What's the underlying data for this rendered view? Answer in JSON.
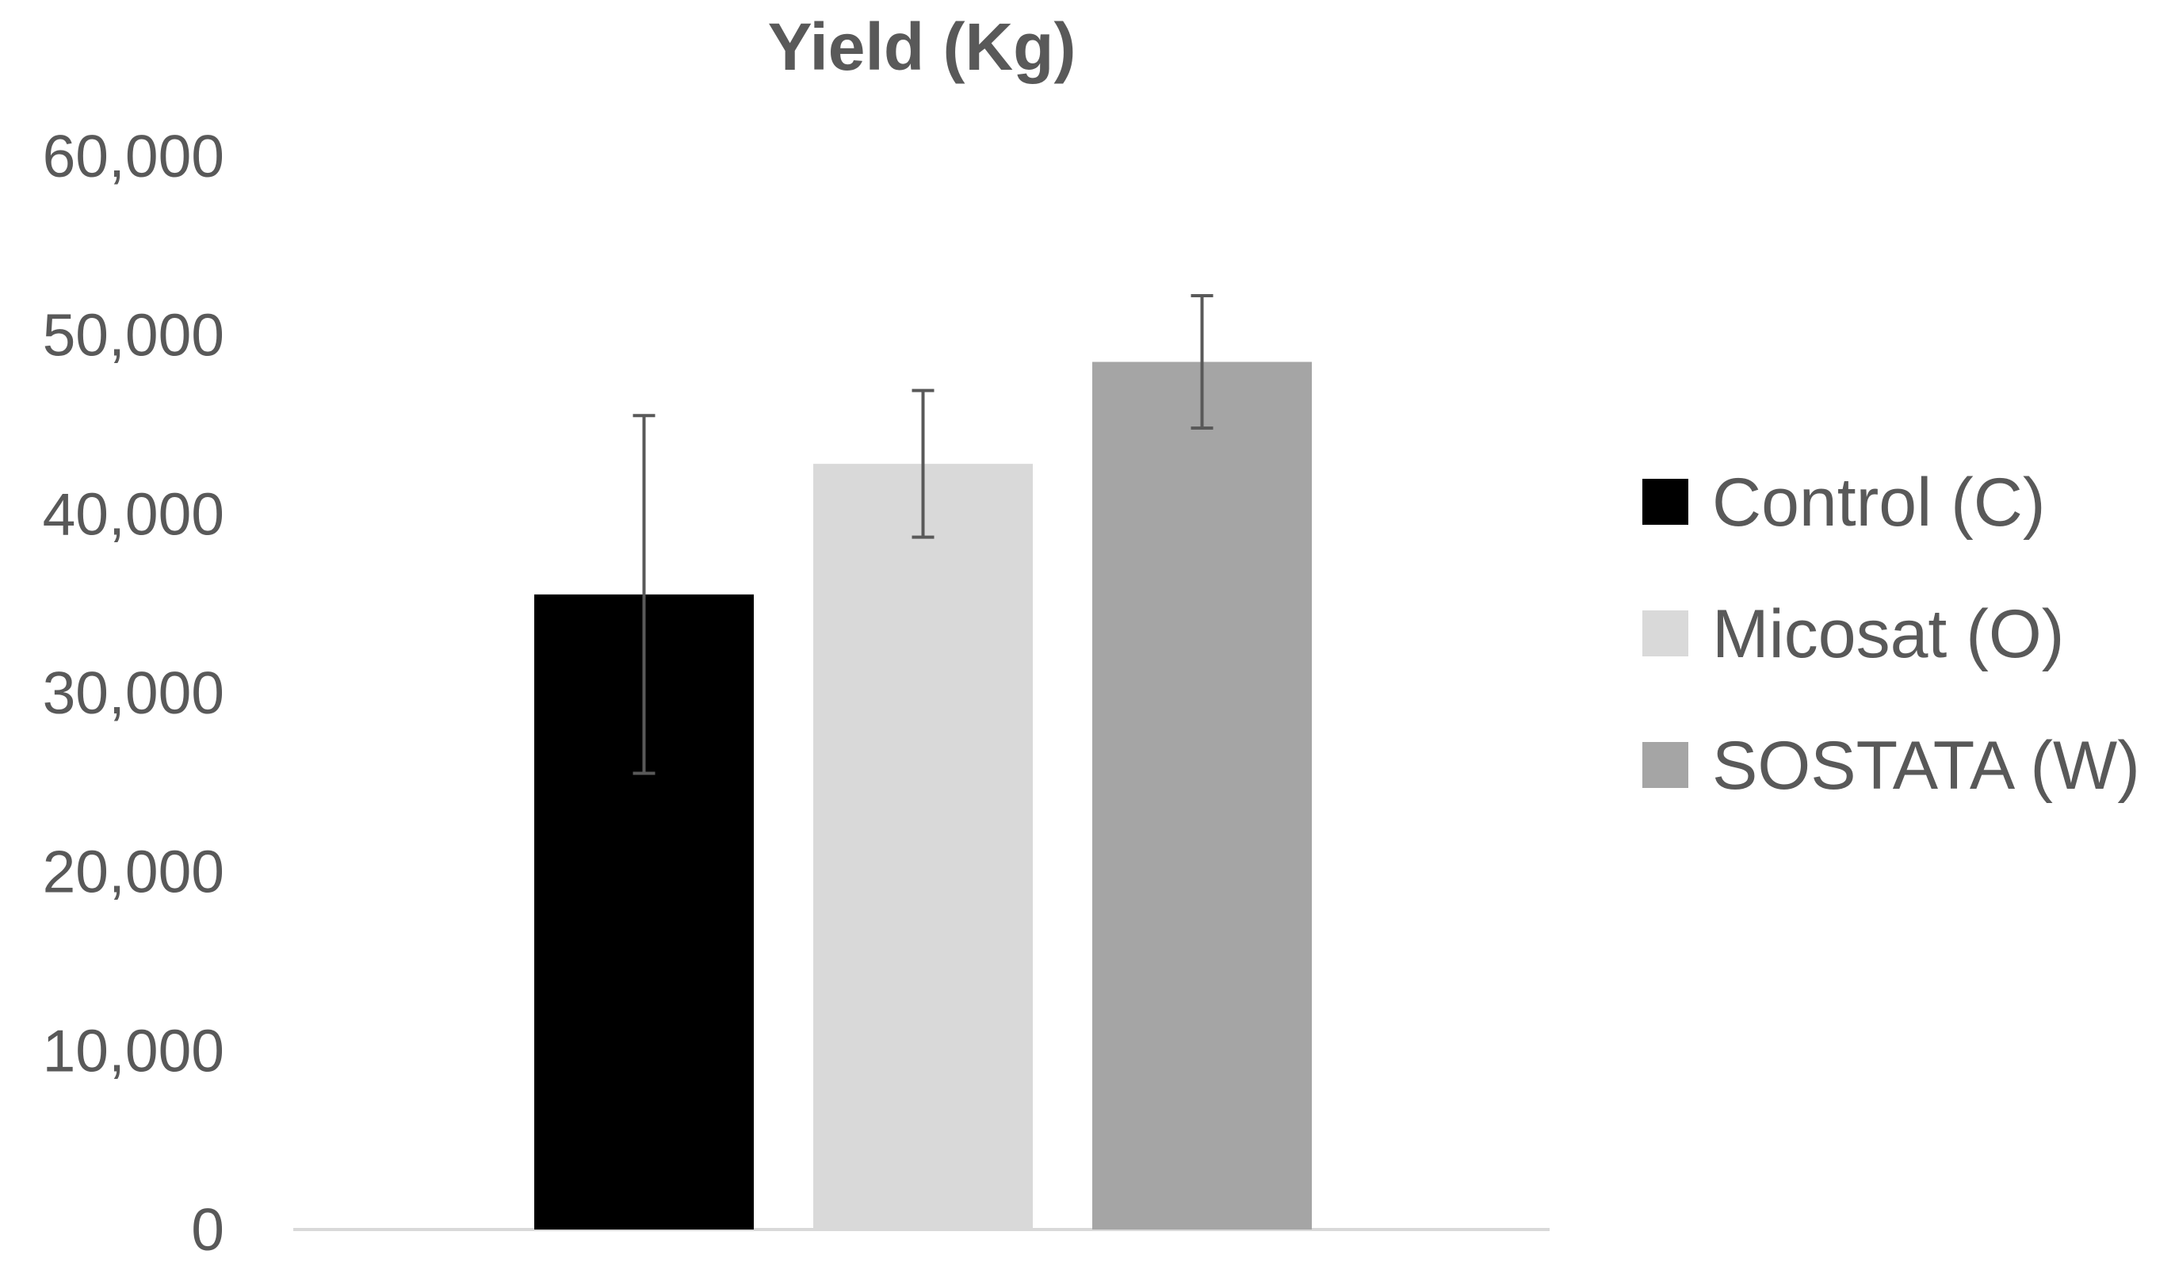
{
  "chart_data": {
    "type": "bar",
    "title": "Yield (Kg)",
    "xlabel": "",
    "ylabel": "",
    "ylim": [
      0,
      60000
    ],
    "yticks": [
      0,
      10000,
      20000,
      30000,
      40000,
      50000,
      60000
    ],
    "ytick_labels": [
      "0",
      "10,000",
      "20,000",
      "30,000",
      "40,000",
      "50,000",
      "60,000"
    ],
    "grid": false,
    "legend_position": "right",
    "series": [
      {
        "name": "Control (C)",
        "value": 35500,
        "error": 10000,
        "color": "#000000"
      },
      {
        "name": "Micosat (O)",
        "value": 42800,
        "error": 4100,
        "color": "#d9d9d9"
      },
      {
        "name": "SOSTATA (W)",
        "value": 48500,
        "error": 3700,
        "color": "#a5a5a5"
      }
    ]
  }
}
